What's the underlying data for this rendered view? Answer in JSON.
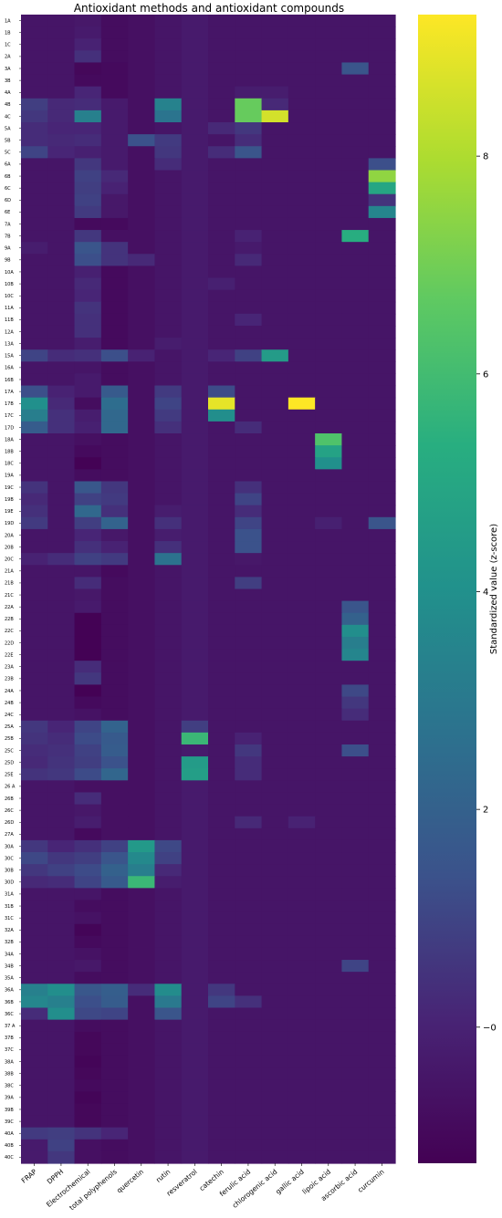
{
  "chart_data": {
    "type": "heatmap",
    "title": "Antioxidant methods and antioxidant compounds",
    "columns": [
      "FRAP",
      "DPPH",
      "Electrochemical",
      "total polyphenols",
      "quercetin",
      "rutin",
      "resveratrol",
      "catechin",
      "ferulic acid",
      "chlorogenic acid",
      "gallic acid",
      "lipoic acid",
      "ascorbic acid",
      "curcumin"
    ],
    "rows": [
      "1A",
      "1B",
      "1C",
      "2A",
      "3A",
      "3B",
      "4A",
      "4B",
      "4C",
      "5A",
      "5B",
      "5C",
      "6A",
      "6B",
      "6C",
      "6D",
      "6E",
      "7A",
      "7B",
      "9A",
      "9B",
      "10A",
      "10B",
      "10C",
      "11A",
      "11B",
      "12A",
      "13A",
      "15A",
      "16A",
      "16B",
      "17A",
      "17B",
      "17C",
      "17D",
      "18A",
      "18B",
      "18C",
      "19A",
      "19C",
      "19B",
      "19E",
      "19D",
      "20A",
      "20B",
      "20C",
      "21A",
      "21B",
      "21C",
      "22A",
      "22B",
      "22C",
      "22D",
      "22E",
      "23A",
      "23B",
      "24A",
      "24B",
      "24C",
      "25A",
      "25B",
      "25C",
      "25D",
      "25E",
      "26 A",
      "26B",
      "26C",
      "26D",
      "27A",
      "30A",
      "30C",
      "30B",
      "30D",
      "31A",
      "31B",
      "31C",
      "32A",
      "32B",
      "34A",
      "34B",
      "35A",
      "36A",
      "36B",
      "36C",
      "37 A",
      "37B",
      "37C",
      "38A",
      "38B",
      "38C",
      "39A",
      "39B",
      "39C",
      "40A",
      "40B",
      "40C"
    ],
    "base": [
      -0.5,
      -0.5,
      -0.5,
      -0.3,
      -0.7,
      -0.5,
      -0.3,
      -0.5,
      -0.5,
      -0.5,
      -0.5,
      -0.5,
      -0.5,
      -0.5
    ],
    "baseline_value": -0.5,
    "overrides": {
      "1A": {
        "Electrochemical": -0.4,
        "total polyphenols": -0.8
      },
      "1B": {
        "Electrochemical": -0.3,
        "total polyphenols": -0.8
      },
      "1C": {
        "Electrochemical": 0.0,
        "total polyphenols": -0.8
      },
      "2A": {
        "Electrochemical": 0.4,
        "total polyphenols": -0.8
      },
      "3A": {
        "Electrochemical": -1.0,
        "total polyphenols": -0.9,
        "ascorbic acid": 1.5
      },
      "3B": {
        "Electrochemical": -0.9,
        "total polyphenols": -0.9
      },
      "4A": {
        "Electrochemical": 0.1,
        "total polyphenols": -0.9,
        "ferulic acid": -0.2,
        "chlorogenic acid": -0.2
      },
      "4B": {
        "FRAP": 0.8,
        "DPPH": 0.2,
        "Electrochemical": 0.3,
        "rutin": 3.4,
        "ferulic acid": 6.8,
        "chlorogenic acid": 0.2
      },
      "4C": {
        "FRAP": 0.6,
        "DPPH": 0.2,
        "Electrochemical": 3.3,
        "rutin": 2.8,
        "ferulic acid": 6.8,
        "chlorogenic acid": 8.6
      },
      "5A": {
        "FRAP": 0.3,
        "DPPH": 0.1,
        "Electrochemical": 0.1,
        "catechin": 0.2,
        "ferulic acid": 0.6
      },
      "5B": {
        "FRAP": 0.3,
        "DPPH": 0.2,
        "Electrochemical": 0.3,
        "quercetin": 1.4,
        "rutin": 0.7,
        "ferulic acid": 0.3
      },
      "5C": {
        "FRAP": 1.0,
        "DPPH": 0.1,
        "Electrochemical": -0.1,
        "rutin": 0.6,
        "catechin": 0.3,
        "ferulic acid": 1.5
      },
      "6A": {
        "Electrochemical": 0.6,
        "rutin": 0.3,
        "curcumin": 1.3
      },
      "6B": {
        "Electrochemical": 0.9,
        "total polyphenols": 0.2,
        "curcumin": 7.5
      },
      "6C": {
        "Electrochemical": 0.8,
        "total polyphenols": 0.0,
        "curcumin": 5.0
      },
      "6D": {
        "Electrochemical": 0.9,
        "total polyphenols": -0.4,
        "curcumin": 0.5
      },
      "6E": {
        "Electrochemical": 0.7,
        "total polyphenols": -0.4,
        "curcumin": 3.5
      },
      "7A": {
        "Electrochemical": -0.9,
        "total polyphenols": -0.9
      },
      "7B": {
        "Electrochemical": 0.6,
        "total polyphenols": -0.7,
        "ferulic acid": 0.0,
        "ascorbic acid": 5.3
      },
      "9A": {
        "FRAP": -0.2,
        "Electrochemical": 1.5,
        "total polyphenols": 0.5,
        "ferulic acid": -0.3
      },
      "9B": {
        "Electrochemical": 1.3,
        "total polyphenols": 0.5,
        "quercetin": 0.2,
        "ferulic acid": 0.2
      },
      "10A": {
        "Electrochemical": -0.1,
        "total polyphenols": -0.9
      },
      "10B": {
        "Electrochemical": 0.2,
        "total polyphenols": -0.9,
        "catechin": -0.1
      },
      "10C": {
        "Electrochemical": 0.1,
        "total polyphenols": -0.9
      },
      "11A": {
        "Electrochemical": 0.5,
        "total polyphenols": -0.9
      },
      "11B": {
        "Electrochemical": 0.4,
        "total polyphenols": -0.9,
        "ferulic acid": 0.1
      },
      "12A": {
        "Electrochemical": 0.4,
        "total polyphenols": -0.9
      },
      "13A": {
        "Electrochemical": -0.2,
        "total polyphenols": -0.9,
        "rutin": -0.2
      },
      "15A": {
        "FRAP": 1.0,
        "DPPH": 0.3,
        "Electrochemical": 0.4,
        "total polyphenols": 1.3,
        "quercetin": 0.0,
        "catechin": 0.1,
        "ferulic acid": 0.9,
        "chlorogenic acid": 4.5
      },
      "16A": {
        "Electrochemical": -0.5,
        "total polyphenols": -0.8
      },
      "16B": {
        "Electrochemical": -0.3,
        "total polyphenols": -0.8
      },
      "17A": {
        "FRAP": 1.3,
        "DPPH": 0.0,
        "Electrochemical": -0.3,
        "total polyphenols": 1.7,
        "rutin": 0.7,
        "catechin": 1.2
      },
      "17B": {
        "FRAP": 4.0,
        "DPPH": 0.2,
        "Electrochemical": -0.8,
        "total polyphenols": 2.5,
        "rutin": 1.0,
        "catechin": 8.9,
        "gallic acid": 9.3
      },
      "17C": {
        "FRAP": 3.2,
        "DPPH": 0.4,
        "Electrochemical": -0.2,
        "total polyphenols": 2.3,
        "rutin": 0.7,
        "catechin": 3.9
      },
      "17D": {
        "FRAP": 1.8,
        "DPPH": 0.4,
        "Electrochemical": -0.1,
        "total polyphenols": 2.3,
        "rutin": 0.4,
        "ferulic acid": 0.3
      },
      "18A": {
        "Electrochemical": -0.7,
        "total polyphenols": -0.8,
        "lipoic acid": 6.3
      },
      "18B": {
        "Electrochemical": -0.9,
        "total polyphenols": -0.8,
        "lipoic acid": 4.8
      },
      "18C": {
        "Electrochemical": -1.2,
        "total polyphenols": -0.8,
        "lipoic acid": 4.0
      },
      "19A": {
        "Electrochemical": -0.8,
        "total polyphenols": -0.8
      },
      "19C": {
        "FRAP": 0.5,
        "Electrochemical": 1.6,
        "total polyphenols": 0.6,
        "ferulic acid": 0.4
      },
      "19B": {
        "FRAP": 0.2,
        "Electrochemical": 0.9,
        "total polyphenols": 0.7,
        "ferulic acid": 1.0
      },
      "19E": {
        "FRAP": 0.4,
        "Electrochemical": 2.3,
        "total polyphenols": 0.4,
        "rutin": -0.2,
        "ferulic acid": 0.3
      },
      "19D": {
        "FRAP": 0.7,
        "Electrochemical": 0.8,
        "total polyphenols": 2.1,
        "rutin": 0.4,
        "ferulic acid": 1.0,
        "lipoic acid": -0.1,
        "curcumin": 1.5
      },
      "20A": {
        "Electrochemical": 0.1,
        "total polyphenols": -0.4,
        "rutin": -0.2,
        "ferulic acid": 1.4
      },
      "20B": {
        "Electrochemical": 0.4,
        "total polyphenols": 0.0,
        "rutin": 0.4,
        "ferulic acid": 1.4
      },
      "20C": {
        "FRAP": 0.0,
        "DPPH": 0.3,
        "Electrochemical": 0.9,
        "total polyphenols": 0.7,
        "rutin": 2.7,
        "ferulic acid": -0.4
      },
      "21A": {
        "Electrochemical": -0.5,
        "total polyphenols": -0.9
      },
      "21B": {
        "Electrochemical": 0.3,
        "total polyphenols": -0.8,
        "ferulic acid": 0.8
      },
      "21C": {
        "Electrochemical": -0.4,
        "total polyphenols": -0.8
      },
      "22A": {
        "Electrochemical": -0.3,
        "total polyphenols": -0.8,
        "ascorbic acid": 1.5
      },
      "22B": {
        "Electrochemical": -1.2,
        "total polyphenols": -0.8,
        "ascorbic acid": 2.0
      },
      "22C": {
        "Electrochemical": -1.2,
        "total polyphenols": -0.8,
        "ascorbic acid": 3.9
      },
      "22D": {
        "Electrochemical": -1.2,
        "total polyphenols": -0.8,
        "ascorbic acid": 3.2
      },
      "22E": {
        "Electrochemical": -1.2,
        "total polyphenols": -0.8,
        "ascorbic acid": 3.5
      },
      "23A": {
        "Electrochemical": 0.3,
        "total polyphenols": -0.8
      },
      "23B": {
        "Electrochemical": 0.6,
        "total polyphenols": -0.8
      },
      "24A": {
        "Electrochemical": -1.2,
        "total polyphenols": -0.8,
        "ascorbic acid": 1.1
      },
      "24B": {
        "Electrochemical": -0.9,
        "total polyphenols": -0.8,
        "ascorbic acid": 0.6
      },
      "24C": {
        "Electrochemical": -0.6,
        "total polyphenols": -0.8,
        "ascorbic acid": 0.3
      },
      "25A": {
        "FRAP": 0.6,
        "DPPH": 0.1,
        "Electrochemical": 1.0,
        "total polyphenols": 2.1,
        "resveratrol": 0.8
      },
      "25B": {
        "FRAP": 0.5,
        "DPPH": 0.3,
        "Electrochemical": 1.2,
        "total polyphenols": 1.7,
        "resveratrol": 5.8,
        "ferulic acid": 0.0
      },
      "25C": {
        "FRAP": 0.3,
        "DPPH": 0.4,
        "Electrochemical": 0.9,
        "total polyphenols": 1.8,
        "ferulic acid": 0.6,
        "ascorbic acid": 1.3
      },
      "25D": {
        "FRAP": 0.2,
        "DPPH": 0.5,
        "Electrochemical": 0.8,
        "total polyphenols": 1.4,
        "resveratrol": 4.5,
        "ferulic acid": 0.3
      },
      "25E": {
        "FRAP": 0.5,
        "DPPH": 0.6,
        "Electrochemical": 1.2,
        "total polyphenols": 2.2,
        "resveratrol": 4.6,
        "ferulic acid": 0.3
      },
      "26 A": {
        "Electrochemical": -0.7,
        "total polyphenols": -0.7
      },
      "26B": {
        "Electrochemical": 0.3,
        "total polyphenols": -0.7
      },
      "26C": {
        "Electrochemical": -0.4,
        "total polyphenols": -0.7
      },
      "26D": {
        "Electrochemical": -0.2,
        "total polyphenols": -0.7,
        "ferulic acid": 0.2,
        "gallic acid": 0.0
      },
      "27A": {
        "Electrochemical": -0.9,
        "total polyphenols": -0.7
      },
      "30A": {
        "FRAP": 0.6,
        "DPPH": 0.1,
        "Electrochemical": 0.4,
        "total polyphenols": 0.9,
        "quercetin": 4.4,
        "rutin": 1.1
      },
      "30C": {
        "FRAP": 1.1,
        "DPPH": 0.6,
        "Electrochemical": 0.8,
        "total polyphenols": 1.5,
        "quercetin": 3.7,
        "rutin": 0.9
      },
      "30B": {
        "FRAP": 0.6,
        "DPPH": 0.9,
        "Electrochemical": 1.2,
        "total polyphenols": 2.0,
        "quercetin": 3.2,
        "rutin": 0.2
      },
      "30D": {
        "FRAP": 0.2,
        "DPPH": 0.3,
        "Electrochemical": 1.0,
        "total polyphenols": 1.7,
        "quercetin": 5.8,
        "rutin": -0.2
      },
      "31A": {
        "Electrochemical": -0.5,
        "total polyphenols": -0.8
      },
      "31B": {
        "Electrochemical": -0.8,
        "total polyphenols": -0.8
      },
      "31C": {
        "Electrochemical": -0.6,
        "total polyphenols": -0.8
      },
      "32A": {
        "Electrochemical": -1.1,
        "total polyphenols": -0.8
      },
      "32B": {
        "Electrochemical": -0.9,
        "total polyphenols": -0.8
      },
      "34A": {
        "Electrochemical": -0.6,
        "total polyphenols": -0.8
      },
      "34B": {
        "Electrochemical": -0.4,
        "total polyphenols": -0.8,
        "ascorbic acid": 1.0
      },
      "35A": {
        "Electrochemical": -0.8,
        "total polyphenols": -0.8
      },
      "36A": {
        "FRAP": 3.3,
        "DPPH": 3.9,
        "Electrochemical": 1.6,
        "total polyphenols": 1.9,
        "quercetin": 0.3,
        "rutin": 3.8,
        "catechin": 0.6
      },
      "36B": {
        "FRAP": 3.6,
        "DPPH": 3.3,
        "Electrochemical": 1.3,
        "total polyphenols": 1.8,
        "rutin": 3.0,
        "catechin": 1.0,
        "ferulic acid": 0.4
      },
      "36C": {
        "FRAP": 0.3,
        "DPPH": 3.9,
        "Electrochemical": 1.1,
        "total polyphenols": 1.0,
        "rutin": 1.5
      },
      "37 A": {
        "Electrochemical": -0.8,
        "total polyphenols": -0.8
      },
      "37B": {
        "Electrochemical": -1.0,
        "total polyphenols": -0.8
      },
      "37C": {
        "Electrochemical": -1.0,
        "total polyphenols": -0.8
      },
      "38A": {
        "Electrochemical": -1.1,
        "total polyphenols": -0.8
      },
      "38B": {
        "Electrochemical": -1.0,
        "total polyphenols": -0.8
      },
      "38C": {
        "Electrochemical": -0.9,
        "total polyphenols": -0.8
      },
      "39A": {
        "Electrochemical": -1.1,
        "total polyphenols": -0.8
      },
      "39B": {
        "Electrochemical": -1.0,
        "total polyphenols": -0.8
      },
      "39C": {
        "Electrochemical": -1.0,
        "total polyphenols": -0.8
      },
      "40A": {
        "FRAP": 0.7,
        "DPPH": 0.8,
        "Electrochemical": 0.5,
        "total polyphenols": 0.1
      },
      "40B": {
        "FRAP": -0.3,
        "DPPH": 0.9,
        "Electrochemical": -0.7,
        "total polyphenols": -0.8
      },
      "40C": {
        "FRAP": -0.3,
        "DPPH": 0.6,
        "Electrochemical": -0.7,
        "total polyphenols": -0.8
      }
    },
    "colormap": "viridis",
    "vmin": -1.25,
    "vmax": 9.3,
    "colorbar": {
      "label": "Standardized value (z-score)",
      "ticks": [
        0,
        2,
        4,
        6,
        8
      ],
      "tick_labels": [
        "−0",
        "2",
        "4",
        "6",
        "8"
      ]
    }
  }
}
